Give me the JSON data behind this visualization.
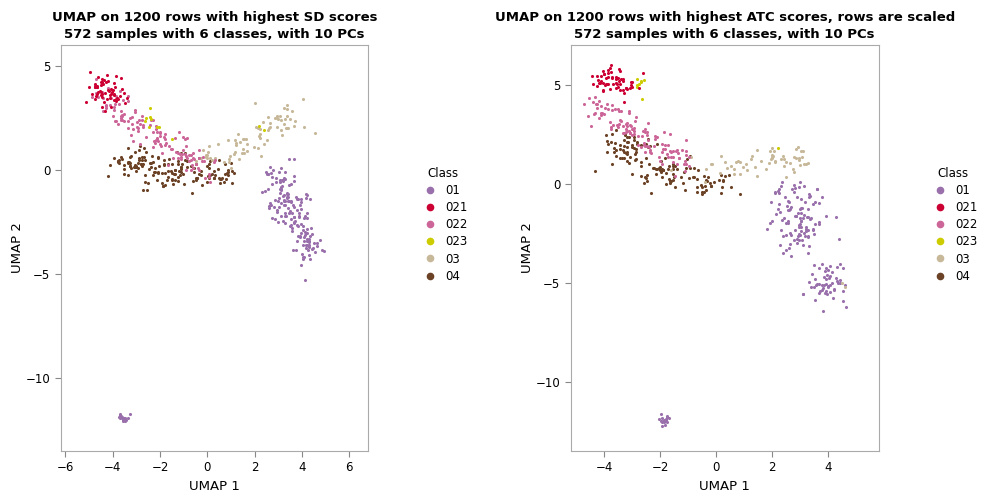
{
  "title1": "UMAP on 1200 rows with highest SD scores\n572 samples with 6 classes, with 10 PCs",
  "title2": "UMAP on 1200 rows with highest ATC scores, rows are scaled\n572 samples with 6 classes, with 10 PCs",
  "xlabel": "UMAP 1",
  "ylabel": "UMAP 2",
  "classes": [
    "01",
    "021",
    "022",
    "023",
    "03",
    "04"
  ],
  "colors": {
    "01": "#9970AB",
    "021": "#CC0033",
    "022": "#CC6699",
    "023": "#CCCC00",
    "03": "#C8B89A",
    "04": "#6B4226"
  },
  "legend_title": "Class",
  "point_size": 5,
  "alpha": 1.0,
  "plot1": {
    "xlim": [
      -6.2,
      6.8
    ],
    "ylim": [
      -13.5,
      6.0
    ],
    "xticks": [
      -6,
      -4,
      -2,
      0,
      2,
      4,
      6
    ],
    "yticks": [
      -10,
      -5,
      0,
      5
    ]
  },
  "plot2": {
    "xlim": [
      -5.2,
      5.8
    ],
    "ylim": [
      -13.5,
      7.0
    ],
    "xticks": [
      -4,
      -2,
      0,
      2,
      4
    ],
    "yticks": [
      -10,
      -5,
      0,
      5
    ]
  }
}
